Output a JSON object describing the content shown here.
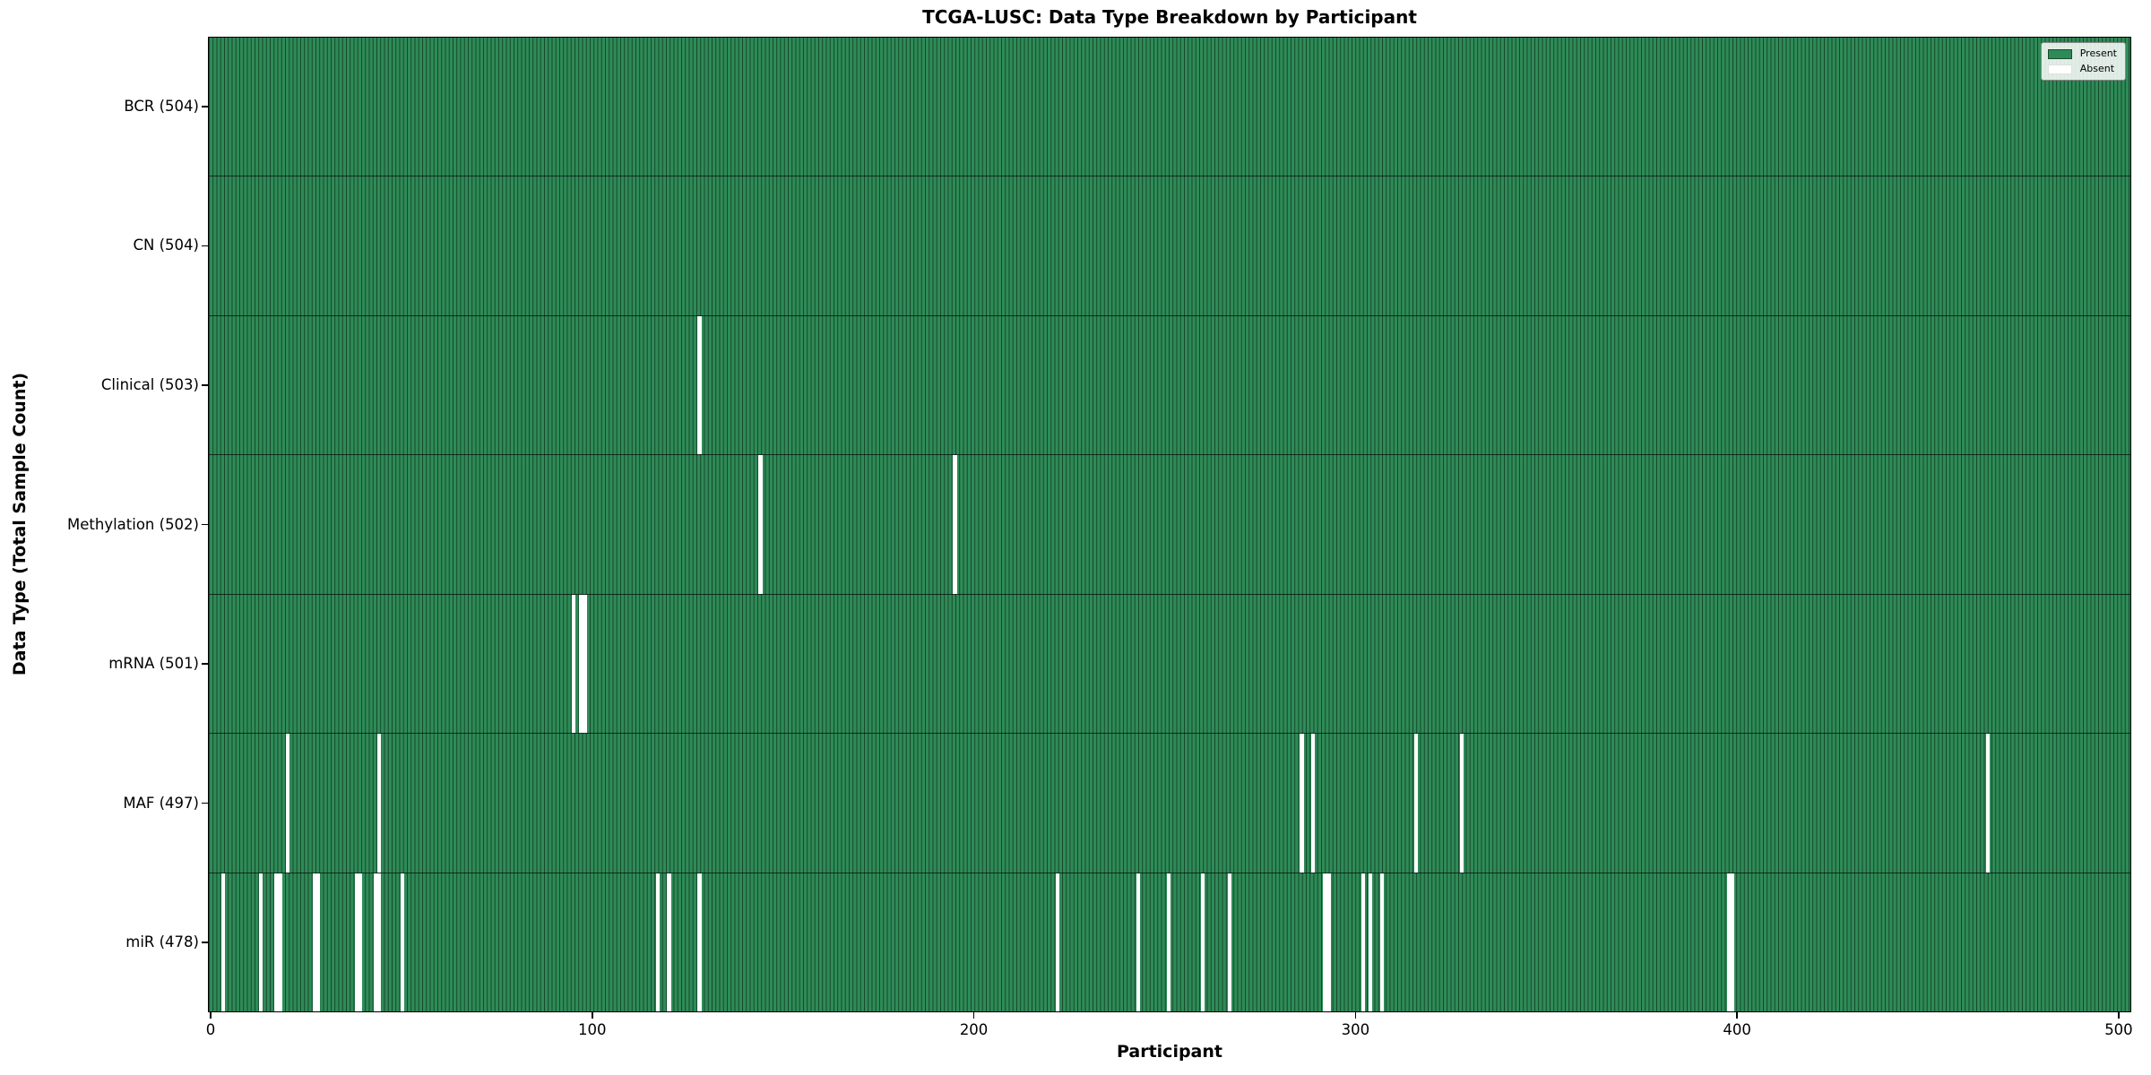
{
  "chart_data": {
    "type": "heatmap",
    "title": "TCGA-LUSC: Data Type Breakdown by Participant",
    "xlabel": "Participant",
    "ylabel": "Data Type (Total Sample Count)",
    "x_ticks": [
      0,
      100,
      200,
      300,
      400,
      500
    ],
    "x_range": [
      -0.7,
      503.3
    ],
    "total_participants": 504,
    "grid": false,
    "legend_position": "upper right",
    "legend": [
      {
        "label": "Present",
        "color": "#2e8b57"
      },
      {
        "label": "Absent",
        "color": "#ffffff"
      }
    ],
    "colors": {
      "present": "#2e8b57",
      "absent": "#ffffff",
      "bar_edge": "rgba(0,0,0,0.5)"
    },
    "categories": [
      "BCR (504)",
      "CN (504)",
      "Clinical (503)",
      "Methylation (502)",
      "mRNA (501)",
      "MAF (497)",
      "miR (478)"
    ],
    "rows": [
      {
        "name": "BCR",
        "count": 504,
        "label": "BCR (504)",
        "absent": []
      },
      {
        "name": "CN",
        "count": 504,
        "label": "CN (504)",
        "absent": []
      },
      {
        "name": "Clinical",
        "count": 503,
        "label": "Clinical (503)",
        "absent": [
          128
        ]
      },
      {
        "name": "Methylation",
        "count": 502,
        "label": "Methylation (502)",
        "absent": [
          144,
          195
        ]
      },
      {
        "name": "mRNA",
        "count": 501,
        "label": "mRNA (501)",
        "absent": [
          95,
          97,
          98
        ]
      },
      {
        "name": "MAF",
        "count": 497,
        "label": "MAF (497)",
        "absent": [
          20,
          44,
          286,
          289,
          316,
          328,
          466
        ]
      },
      {
        "name": "miR",
        "count": 478,
        "label": "miR (478)",
        "absent": [
          3,
          13,
          17,
          18,
          27,
          28,
          38,
          39,
          43,
          44,
          50,
          117,
          120,
          128,
          222,
          243,
          251,
          260,
          267,
          292,
          293,
          302,
          304,
          307,
          398,
          399
        ]
      }
    ]
  }
}
